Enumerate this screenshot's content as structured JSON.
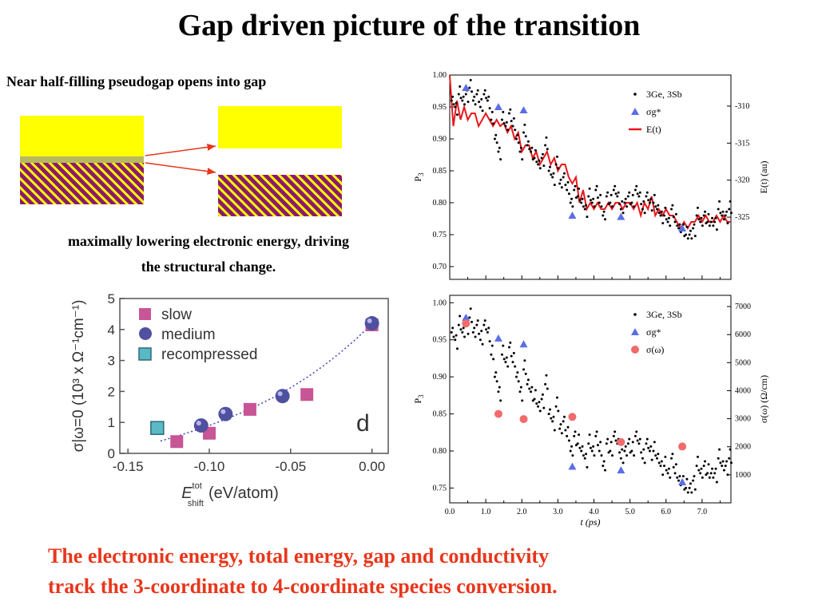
{
  "title": "Gap driven picture of the transition",
  "band_schematic": {
    "subtitle": "Near half-filling pseudogap opens into gap",
    "caption_line1": "maximally lowering electronic energy, driving",
    "caption_line2": "the structural change.",
    "colors": {
      "conduction_band": "#ffff00",
      "valence_band": "#8b1a6b",
      "arrow": "#e8361b"
    }
  },
  "chart_data": [
    {
      "type": "scatter",
      "panel": "top-right",
      "xlim": [
        0.0,
        7.8
      ],
      "ylim": [
        0.68,
        1.0
      ],
      "ylabel": "P",
      "ylabel_sub": "3",
      "y_ticks": [
        "1.00",
        "0.95",
        "0.90",
        "0.85",
        "0.80",
        "0.75",
        "0.70"
      ],
      "right_axis": {
        "label": "E(t) (au)",
        "ticks": [
          "-310",
          "-315",
          "-320",
          "-325"
        ],
        "range": [
          -305.8,
          -333.4
        ]
      },
      "legend": {
        "placement": "top-right",
        "entries": [
          "3Ge, 3Sb",
          "σg*",
          "E(t)"
        ]
      },
      "series": [
        {
          "name": "3Ge, 3Sb",
          "kind": "dots",
          "color": "#000000",
          "x": [
            0.05,
            0.15,
            0.25,
            0.35,
            0.45,
            0.55,
            0.65,
            0.75,
            0.85,
            0.95,
            1.05,
            1.15,
            1.25,
            1.35,
            1.45,
            1.55,
            1.65,
            1.75,
            1.85,
            1.95,
            2.05,
            2.15,
            2.25,
            2.35,
            2.45,
            2.55,
            2.65,
            2.75,
            2.85,
            2.95,
            3.05,
            3.15,
            3.25,
            3.35,
            3.45,
            3.55,
            3.65,
            3.75,
            3.85,
            3.95,
            4.05,
            4.15,
            4.25,
            4.35,
            4.45,
            4.55,
            4.65,
            4.75,
            4.85,
            4.95,
            5.05,
            5.15,
            5.25,
            5.35,
            5.45,
            5.55,
            5.65,
            5.75,
            5.85,
            5.95,
            6.05,
            6.15,
            6.25,
            6.35,
            6.45,
            6.55,
            6.65,
            6.75,
            6.85,
            6.95,
            7.05,
            7.15,
            7.25,
            7.35,
            7.45,
            7.55,
            7.65,
            7.75
          ],
          "values": [
            0.96,
            0.95,
            0.97,
            0.96,
            0.97,
            0.98,
            0.96,
            0.97,
            0.95,
            0.97,
            0.96,
            0.93,
            0.9,
            0.88,
            0.93,
            0.92,
            0.94,
            0.92,
            0.9,
            0.88,
            0.91,
            0.89,
            0.88,
            0.87,
            0.86,
            0.87,
            0.89,
            0.85,
            0.84,
            0.86,
            0.83,
            0.84,
            0.82,
            0.8,
            0.82,
            0.81,
            0.8,
            0.79,
            0.81,
            0.8,
            0.82,
            0.8,
            0.78,
            0.81,
            0.8,
            0.82,
            0.81,
            0.79,
            0.8,
            0.81,
            0.8,
            0.82,
            0.81,
            0.79,
            0.81,
            0.8,
            0.8,
            0.79,
            0.78,
            0.78,
            0.77,
            0.79,
            0.77,
            0.76,
            0.76,
            0.75,
            0.75,
            0.76,
            0.78,
            0.77,
            0.78,
            0.77,
            0.77,
            0.77,
            0.79,
            0.78,
            0.78,
            0.79
          ]
        },
        {
          "name": "σg*",
          "kind": "triangles",
          "color": "#5a6ee6",
          "x": [
            0.45,
            1.35,
            2.05,
            3.4,
            4.75,
            6.45
          ],
          "values": [
            0.98,
            0.95,
            0.945,
            0.78,
            0.778,
            0.76
          ]
        },
        {
          "name": "E(t)",
          "kind": "line",
          "color": "#e8171b",
          "x": [
            0.0,
            0.1,
            0.2,
            0.3,
            0.4,
            0.5,
            0.6,
            0.7,
            0.8,
            0.9,
            1.0,
            1.1,
            1.2,
            1.3,
            1.4,
            1.5,
            1.6,
            1.7,
            1.8,
            1.9,
            2.0,
            2.1,
            2.2,
            2.3,
            2.4,
            2.5,
            2.6,
            2.7,
            2.8,
            2.9,
            3.0,
            3.1,
            3.2,
            3.3,
            3.4,
            3.5,
            3.6,
            3.7,
            3.8,
            3.9,
            4.0,
            4.1,
            4.2,
            4.3,
            4.4,
            4.5,
            4.6,
            4.7,
            4.8,
            4.9,
            5.0,
            5.1,
            5.2,
            5.3,
            5.4,
            5.5,
            5.6,
            5.7,
            5.8,
            5.9,
            6.0,
            6.1,
            6.2,
            6.3,
            6.4,
            6.5,
            6.6,
            6.7,
            6.8,
            6.9,
            7.0,
            7.1,
            7.2,
            7.3,
            7.4,
            7.5,
            7.6,
            7.7,
            7.8
          ],
          "values": [
            0.999,
            0.92,
            0.96,
            0.93,
            0.95,
            0.93,
            0.94,
            0.94,
            0.92,
            0.93,
            0.94,
            0.93,
            0.92,
            0.93,
            0.92,
            0.925,
            0.91,
            0.92,
            0.9,
            0.91,
            0.88,
            0.89,
            0.89,
            0.87,
            0.88,
            0.86,
            0.87,
            0.88,
            0.86,
            0.87,
            0.85,
            0.86,
            0.86,
            0.84,
            0.83,
            0.84,
            0.8,
            0.82,
            0.79,
            0.8,
            0.79,
            0.8,
            0.79,
            0.79,
            0.8,
            0.79,
            0.8,
            0.8,
            0.79,
            0.8,
            0.8,
            0.79,
            0.8,
            0.78,
            0.8,
            0.79,
            0.81,
            0.78,
            0.79,
            0.78,
            0.79,
            0.78,
            0.78,
            0.77,
            0.76,
            0.77,
            0.76,
            0.77,
            0.77,
            0.78,
            0.77,
            0.78,
            0.77,
            0.77,
            0.78,
            0.77,
            0.78,
            0.77,
            0.77
          ]
        }
      ]
    },
    {
      "type": "scatter",
      "panel": "bottom-right",
      "xlabel": "t (ps)",
      "xlim": [
        0.0,
        7.8
      ],
      "x_ticks": [
        "0.0",
        "1.0",
        "2.0",
        "3.0",
        "4.0",
        "5.0",
        "6.0",
        "7.0"
      ],
      "ylim": [
        0.73,
        1.01
      ],
      "ylabel": "P",
      "ylabel_sub": "3",
      "y_ticks": [
        "1.00",
        "0.95",
        "0.90",
        "0.85",
        "0.80",
        "0.75"
      ],
      "right_axis": {
        "label": "σ(ω) (Ω/cm)",
        "ticks": [
          "7000",
          "6000",
          "5000",
          "4000",
          "3000",
          "2000",
          "1000"
        ],
        "range": [
          7400,
          0
        ]
      },
      "legend": {
        "placement": "top-right",
        "entries": [
          "3Ge, 3Sb",
          "σg*",
          "σ(ω)"
        ]
      },
      "series": [
        {
          "name": "3Ge, 3Sb",
          "kind": "dots",
          "color": "#000000",
          "x": [
            0.05,
            0.15,
            0.25,
            0.35,
            0.45,
            0.55,
            0.65,
            0.75,
            0.85,
            0.95,
            1.05,
            1.15,
            1.25,
            1.35,
            1.45,
            1.55,
            1.65,
            1.75,
            1.85,
            1.95,
            2.05,
            2.15,
            2.25,
            2.35,
            2.45,
            2.55,
            2.65,
            2.75,
            2.85,
            2.95,
            3.05,
            3.15,
            3.25,
            3.35,
            3.45,
            3.55,
            3.65,
            3.75,
            3.85,
            3.95,
            4.05,
            4.15,
            4.25,
            4.35,
            4.45,
            4.55,
            4.65,
            4.75,
            4.85,
            4.95,
            5.05,
            5.15,
            5.25,
            5.35,
            5.45,
            5.55,
            5.65,
            5.75,
            5.85,
            5.95,
            6.05,
            6.15,
            6.25,
            6.35,
            6.45,
            6.55,
            6.65,
            6.75,
            6.85,
            6.95,
            7.05,
            7.15,
            7.25,
            7.35,
            7.45,
            7.55,
            7.65,
            7.75
          ],
          "values": [
            0.96,
            0.95,
            0.97,
            0.96,
            0.97,
            0.98,
            0.96,
            0.97,
            0.95,
            0.97,
            0.96,
            0.93,
            0.9,
            0.88,
            0.93,
            0.92,
            0.94,
            0.92,
            0.9,
            0.88,
            0.91,
            0.89,
            0.88,
            0.87,
            0.86,
            0.87,
            0.89,
            0.85,
            0.84,
            0.86,
            0.83,
            0.84,
            0.82,
            0.8,
            0.82,
            0.81,
            0.8,
            0.79,
            0.81,
            0.8,
            0.82,
            0.8,
            0.78,
            0.81,
            0.8,
            0.82,
            0.81,
            0.79,
            0.8,
            0.81,
            0.8,
            0.82,
            0.81,
            0.79,
            0.81,
            0.8,
            0.8,
            0.79,
            0.78,
            0.78,
            0.77,
            0.79,
            0.77,
            0.76,
            0.76,
            0.75,
            0.75,
            0.76,
            0.78,
            0.77,
            0.78,
            0.77,
            0.77,
            0.77,
            0.79,
            0.78,
            0.78,
            0.79
          ]
        },
        {
          "name": "σg*",
          "kind": "triangles",
          "color": "#5a6ee6",
          "x": [
            0.45,
            1.35,
            2.05,
            3.4,
            4.75,
            6.45
          ],
          "values": [
            0.98,
            0.952,
            0.944,
            0.779,
            0.774,
            0.758
          ]
        },
        {
          "name": "σ(ω)",
          "kind": "circles",
          "color": "#f26b6b",
          "x": [
            0.45,
            1.35,
            2.05,
            3.4,
            4.75,
            6.45
          ],
          "values": [
            0.972,
            0.85,
            0.843,
            0.846,
            0.812,
            0.806
          ]
        }
      ]
    },
    {
      "type": "scatter",
      "panel": "bottom-left",
      "xlabel": "E",
      "xlabel_sup": "tot",
      "xlabel_sub": "shift",
      "xlabel_unit": "(eV/atom)",
      "xlim": [
        -0.155,
        0.01
      ],
      "x_ticks": [
        "-0.15",
        "-0.10",
        "-0.05",
        "0.00"
      ],
      "ylim": [
        0,
        5
      ],
      "y_ticks": [
        "0",
        "1",
        "2",
        "3",
        "4",
        "5"
      ],
      "ylabel": "σ|ω=0 (10³ x Ω⁻¹cm⁻¹)",
      "panel_label": "d",
      "legend": {
        "placement": "top-left",
        "entries": [
          "slow",
          "medium",
          "recompressed"
        ]
      },
      "series": [
        {
          "name": "slow",
          "kind": "squares",
          "color": "#c85596",
          "x": [
            -0.12,
            -0.1,
            -0.075,
            -0.04,
            0.0
          ],
          "values": [
            0.38,
            0.65,
            1.42,
            1.9,
            4.15
          ]
        },
        {
          "name": "medium",
          "kind": "spheres",
          "color": "#5050a0",
          "x": [
            -0.105,
            -0.09,
            -0.055,
            0.0
          ],
          "values": [
            0.9,
            1.27,
            1.85,
            4.2
          ]
        },
        {
          "name": "recompressed",
          "kind": "squares",
          "color": "#5bb9c6",
          "x": [
            -0.132
          ],
          "values": [
            0.82
          ]
        }
      ],
      "fit": {
        "kind": "dotted-curve",
        "color": "#4040c0",
        "x": [
          -0.13,
          -0.12,
          -0.11,
          -0.1,
          -0.09,
          -0.08,
          -0.07,
          -0.06,
          -0.05,
          -0.04,
          -0.03,
          -0.02,
          -0.01,
          0.0
        ],
        "values": [
          0.4,
          0.55,
          0.72,
          0.9,
          1.1,
          1.32,
          1.56,
          1.82,
          2.12,
          2.45,
          2.82,
          3.23,
          3.68,
          4.18
        ]
      }
    }
  ],
  "conclusion_line1": "The electronic energy, total energy, gap and conductivity",
  "conclusion_line2": "track the  3-coordinate to 4-coordinate species conversion."
}
